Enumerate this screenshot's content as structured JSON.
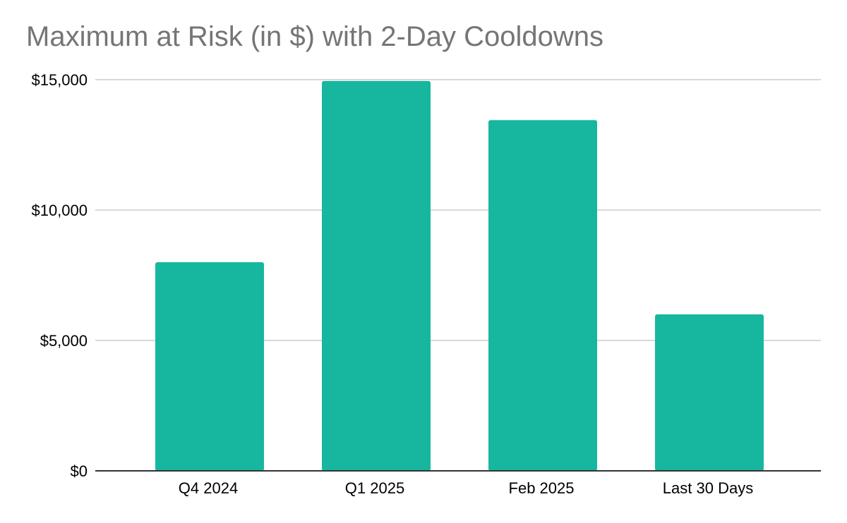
{
  "chart_data": {
    "type": "bar",
    "title": "Maximum at Risk (in $) with 2-Day Cooldowns",
    "xlabel": "",
    "ylabel": "",
    "categories": [
      "Q4 2024",
      "Q1 2025",
      "Feb 2025",
      "Last 30 Days"
    ],
    "values": [
      8000,
      14950,
      13450,
      6000
    ],
    "ylim": [
      0,
      15000
    ],
    "y_ticks": [
      0,
      5000,
      10000,
      15000
    ],
    "y_tick_labels": [
      "$0",
      "$5,000",
      "$10,000",
      "$15,000"
    ],
    "grid": true,
    "legend": "none",
    "colors": {
      "bar": "#17b79f",
      "grid": "#cccccc",
      "axis": "#333333",
      "title": "#757575"
    }
  }
}
